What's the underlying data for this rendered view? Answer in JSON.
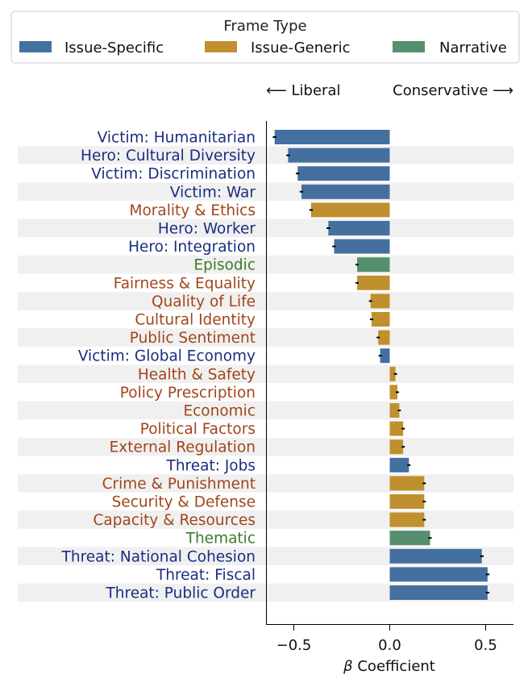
{
  "chart_data": {
    "type": "bar",
    "orientation": "horizontal",
    "title": "",
    "xlabel": "β Coefficient",
    "ylabel": "",
    "xlim": [
      -0.65,
      0.65
    ],
    "x_ticks": [
      -0.5,
      0.0,
      0.5
    ],
    "x_tick_labels": [
      "−0.5",
      "0.0",
      "0.5"
    ],
    "direction_labels": {
      "left": "⟵ Liberal",
      "right": "Conservative ⟶"
    },
    "legend": {
      "title": "Frame Type",
      "placement": "top",
      "entries": [
        {
          "name": "Issue-Specific",
          "color": "#4470a0"
        },
        {
          "name": "Issue-Generic",
          "color": "#c0902e"
        },
        {
          "name": "Narrative",
          "color": "#568f6e"
        }
      ]
    },
    "label_colors": {
      "Issue-Specific": "#1a2d80",
      "Issue-Generic": "#a0461a",
      "Narrative": "#3f7a2a"
    },
    "row_stripes": true,
    "categories": [
      "Victim: Humanitarian",
      "Hero: Cultural Diversity",
      "Victim: Discrimination",
      "Victim: War",
      "Morality & Ethics",
      "Hero: Worker",
      "Hero: Integration",
      "Episodic",
      "Fairness & Equality",
      "Quality of Life",
      "Cultural Identity",
      "Public Sentiment",
      "Victim: Global Economy",
      "Health & Safety",
      "Policy Prescription",
      "Economic",
      "Political Factors",
      "External Regulation",
      "Threat: Jobs",
      "Crime & Punishment",
      "Security & Defense",
      "Capacity & Resources",
      "Thematic",
      "Threat: National Cohesion",
      "Threat: Fiscal",
      "Threat: Public Order"
    ],
    "frame_types": [
      "Issue-Specific",
      "Issue-Specific",
      "Issue-Specific",
      "Issue-Specific",
      "Issue-Generic",
      "Issue-Specific",
      "Issue-Specific",
      "Narrative",
      "Issue-Generic",
      "Issue-Generic",
      "Issue-Generic",
      "Issue-Generic",
      "Issue-Specific",
      "Issue-Generic",
      "Issue-Generic",
      "Issue-Generic",
      "Issue-Generic",
      "Issue-Generic",
      "Issue-Specific",
      "Issue-Generic",
      "Issue-Generic",
      "Issue-Generic",
      "Narrative",
      "Issue-Specific",
      "Issue-Specific",
      "Issue-Specific"
    ],
    "values": [
      -0.6,
      -0.53,
      -0.48,
      -0.46,
      -0.41,
      -0.32,
      -0.29,
      -0.17,
      -0.17,
      -0.1,
      -0.095,
      -0.06,
      -0.05,
      0.03,
      0.04,
      0.05,
      0.07,
      0.07,
      0.1,
      0.18,
      0.18,
      0.18,
      0.21,
      0.48,
      0.51,
      0.51
    ],
    "error": [
      0.005,
      0.005,
      0.005,
      0.005,
      0.005,
      0.005,
      0.005,
      0.004,
      0.004,
      0.004,
      0.004,
      0.004,
      0.004,
      0.004,
      0.004,
      0.004,
      0.004,
      0.004,
      0.004,
      0.004,
      0.004,
      0.004,
      0.004,
      0.005,
      0.005,
      0.005
    ]
  }
}
